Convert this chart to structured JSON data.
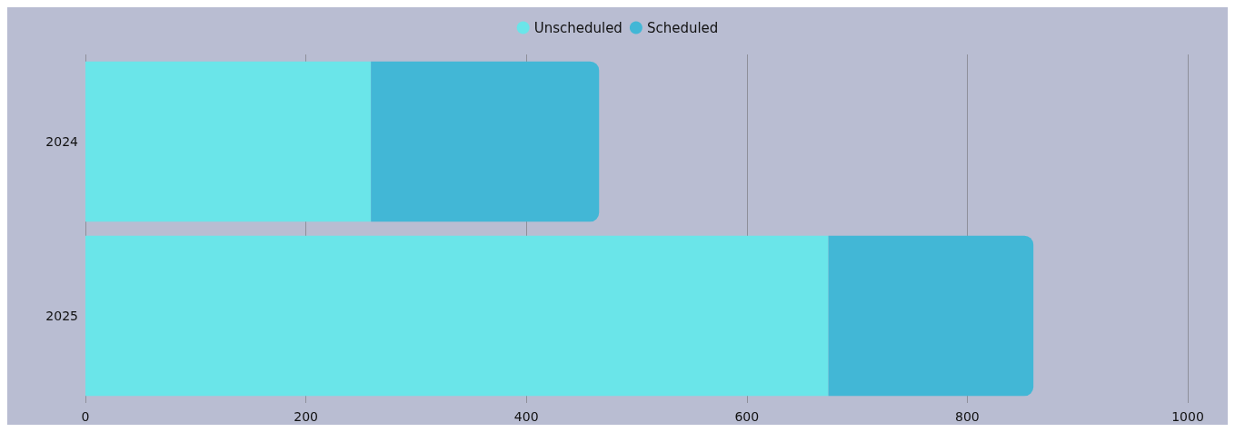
{
  "chart_data": {
    "type": "bar",
    "orientation": "horizontal",
    "stacked": true,
    "categories": [
      "2024",
      "2025"
    ],
    "series": [
      {
        "name": "Unscheduled",
        "color": "#6ae5e9",
        "values": [
          259,
          674
        ]
      },
      {
        "name": "Scheduled",
        "color": "#42b7d6",
        "values": [
          207,
          186
        ]
      }
    ],
    "xlim": [
      0,
      1000
    ],
    "xticks": [
      0,
      200,
      400,
      600,
      800,
      1000
    ],
    "grid": "x",
    "legend": "top"
  }
}
